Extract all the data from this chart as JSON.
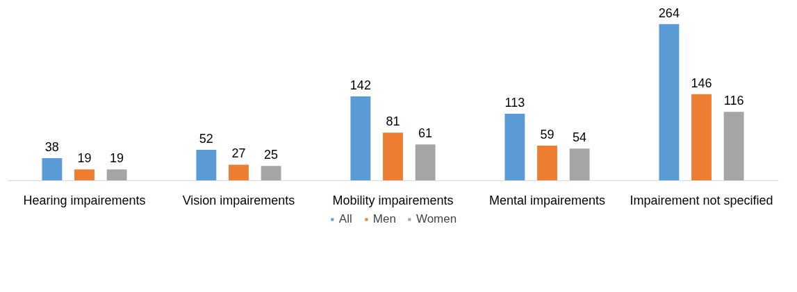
{
  "chart_data": {
    "type": "bar",
    "categories": [
      "Hearing impairements",
      "Vision impairements",
      "Mobility impairements",
      "Mental impairements",
      "Impairement not specified"
    ],
    "series": [
      {
        "name": "All",
        "color": "#5b9bd5",
        "values": [
          38,
          52,
          142,
          113,
          264
        ]
      },
      {
        "name": "Men",
        "color": "#ed7d31",
        "values": [
          19,
          27,
          81,
          59,
          146
        ]
      },
      {
        "name": "Women",
        "color": "#a5a5a5",
        "values": [
          19,
          25,
          61,
          54,
          116
        ]
      }
    ],
    "data_labels": true,
    "legend": "bottom"
  }
}
